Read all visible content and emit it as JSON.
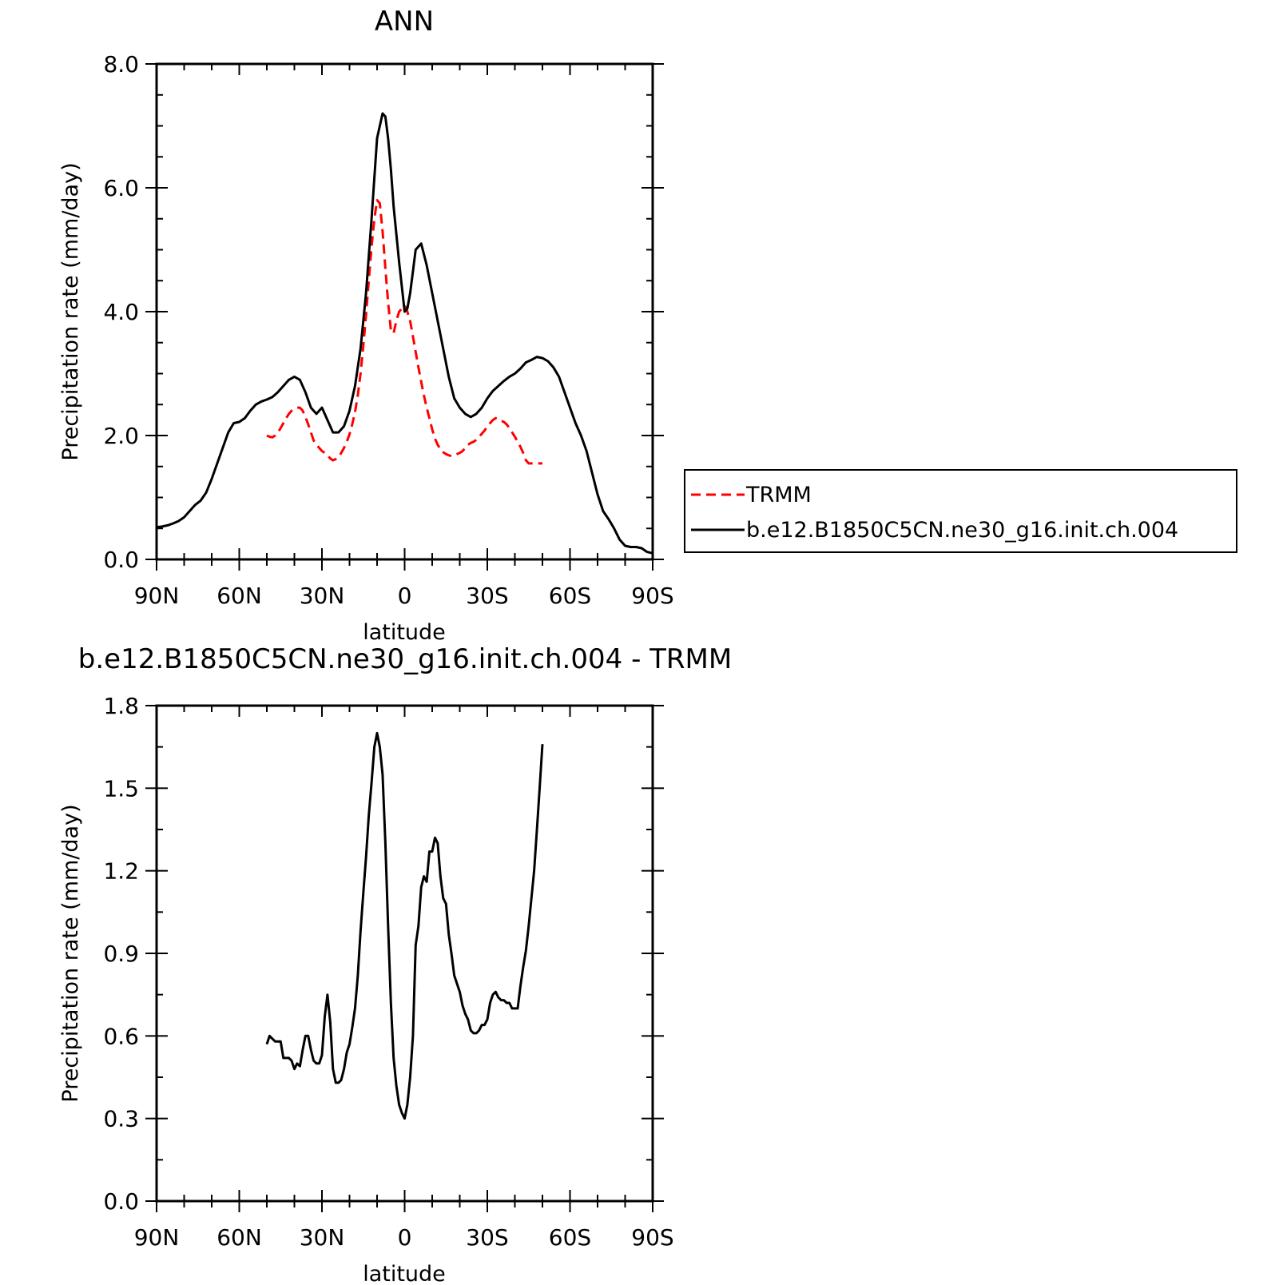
{
  "chart_data": [
    {
      "type": "line",
      "title": "ANN",
      "xlabel": "latitude",
      "ylabel": "Precipitation rate (mm/day)",
      "xlim": [
        90,
        -90
      ],
      "ylim": [
        0,
        8
      ],
      "xticks": [
        90,
        60,
        30,
        0,
        -30,
        -60,
        -90
      ],
      "xtick_labels": [
        "90N",
        "60N",
        "30N",
        "0",
        "30S",
        "60S",
        "90S"
      ],
      "yticks": [
        0,
        2,
        4,
        6,
        8
      ],
      "ytick_labels": [
        "0.0",
        "2.0",
        "4.0",
        "6.0",
        "8.0"
      ],
      "grid": false,
      "legend": "right",
      "series": [
        {
          "name": "TRMM",
          "color": "#ff0000",
          "dash": "dashed",
          "x": [
            50,
            49,
            48,
            47,
            46,
            45,
            44,
            43,
            42,
            41,
            40,
            39,
            38,
            37,
            36,
            35,
            34,
            33,
            32,
            31,
            30,
            29,
            28,
            27,
            26,
            25,
            24,
            23,
            22,
            21,
            20,
            19,
            18,
            17,
            16,
            15,
            14,
            13,
            12,
            11,
            10,
            9,
            8,
            7,
            6,
            5,
            4,
            3,
            2,
            1,
            0,
            -1,
            -2,
            -3,
            -4,
            -5,
            -6,
            -7,
            -8,
            -9,
            -10,
            -11,
            -12,
            -13,
            -14,
            -15,
            -16,
            -17,
            -18,
            -19,
            -20,
            -21,
            -22,
            -23,
            -24,
            -25,
            -26,
            -27,
            -28,
            -29,
            -30,
            -31,
            -32,
            -33,
            -34,
            -35,
            -36,
            -37,
            -38,
            -39,
            -40,
            -41,
            -42,
            -43,
            -44,
            -45,
            -46,
            -47,
            -48,
            -49,
            -50
          ],
          "y": [
            2.0,
            1.98,
            1.97,
            2.0,
            2.05,
            2.12,
            2.2,
            2.28,
            2.35,
            2.4,
            2.43,
            2.45,
            2.45,
            2.4,
            2.3,
            2.18,
            2.05,
            1.92,
            1.85,
            1.8,
            1.75,
            1.72,
            1.68,
            1.63,
            1.6,
            1.62,
            1.65,
            1.72,
            1.8,
            1.9,
            2.02,
            2.18,
            2.38,
            2.65,
            3.0,
            3.45,
            3.95,
            4.5,
            5.05,
            5.5,
            5.8,
            5.75,
            5.3,
            4.7,
            4.15,
            3.7,
            3.65,
            3.85,
            4.0,
            4.05,
            4.1,
            4.0,
            3.85,
            3.6,
            3.35,
            3.1,
            2.87,
            2.65,
            2.45,
            2.28,
            2.1,
            1.95,
            1.85,
            1.78,
            1.73,
            1.7,
            1.68,
            1.67,
            1.68,
            1.7,
            1.72,
            1.75,
            1.8,
            1.85,
            1.88,
            1.9,
            1.93,
            1.98,
            2.03,
            2.08,
            2.15,
            2.2,
            2.25,
            2.28,
            2.27,
            2.24,
            2.22,
            2.18,
            2.12,
            2.05,
            1.98,
            1.9,
            1.82,
            1.72,
            1.6,
            1.55,
            1.55,
            1.55,
            1.55,
            1.55,
            1.55
          ]
        },
        {
          "name": "b.e12.B1850C5CN.ne30_g16.init.ch.004",
          "color": "#000000",
          "dash": "solid",
          "x": [
            90,
            88,
            86,
            84,
            82,
            80,
            78,
            76,
            74,
            72,
            70,
            68,
            66,
            64,
            62,
            60,
            58,
            56,
            54,
            52,
            50,
            48,
            46,
            44,
            42,
            40,
            38,
            36,
            34,
            32,
            30,
            28,
            26,
            24,
            22,
            20,
            18,
            16,
            14,
            12,
            10,
            8,
            7,
            6,
            5,
            4,
            2,
            0,
            -1,
            -2,
            -3,
            -4,
            -6,
            -8,
            -10,
            -12,
            -14,
            -16,
            -18,
            -20,
            -22,
            -24,
            -26,
            -28,
            -30,
            -32,
            -34,
            -36,
            -38,
            -40,
            -42,
            -44,
            -46,
            -48,
            -50,
            -52,
            -54,
            -56,
            -58,
            -60,
            -62,
            -64,
            -66,
            -68,
            -70,
            -72,
            -74,
            -76,
            -78,
            -80,
            -82,
            -84,
            -86,
            -88,
            -90
          ],
          "y": [
            0.52,
            0.53,
            0.55,
            0.58,
            0.62,
            0.68,
            0.78,
            0.88,
            0.95,
            1.08,
            1.3,
            1.55,
            1.8,
            2.05,
            2.2,
            2.22,
            2.28,
            2.4,
            2.5,
            2.55,
            2.58,
            2.62,
            2.7,
            2.8,
            2.9,
            2.95,
            2.9,
            2.7,
            2.45,
            2.35,
            2.45,
            2.25,
            2.05,
            2.05,
            2.15,
            2.4,
            2.8,
            3.4,
            4.3,
            5.5,
            6.8,
            7.2,
            7.15,
            6.8,
            6.3,
            5.7,
            4.8,
            4.0,
            4.05,
            4.3,
            4.65,
            5.0,
            5.1,
            4.75,
            4.3,
            3.85,
            3.4,
            2.95,
            2.6,
            2.45,
            2.35,
            2.3,
            2.35,
            2.45,
            2.6,
            2.72,
            2.8,
            2.88,
            2.95,
            3.0,
            3.08,
            3.18,
            3.22,
            3.27,
            3.25,
            3.2,
            3.1,
            2.95,
            2.7,
            2.45,
            2.2,
            2.0,
            1.75,
            1.4,
            1.05,
            0.78,
            0.65,
            0.5,
            0.32,
            0.22,
            0.2,
            0.2,
            0.18,
            0.12,
            0.1
          ]
        }
      ]
    },
    {
      "type": "line",
      "title": "b.e12.B1850C5CN.ne30_g16.init.ch.004 - TRMM",
      "xlabel": "latitude",
      "ylabel": "Precipitation rate (mm/day)",
      "xlim": [
        90,
        -90
      ],
      "ylim": [
        0,
        1.8
      ],
      "xticks": [
        90,
        60,
        30,
        0,
        -30,
        -60,
        -90
      ],
      "xtick_labels": [
        "90N",
        "60N",
        "30N",
        "0",
        "30S",
        "60S",
        "90S"
      ],
      "yticks": [
        0,
        0.3,
        0.6,
        0.9,
        1.2,
        1.5,
        1.8
      ],
      "ytick_labels": [
        "0.0",
        "0.3",
        "0.6",
        "0.9",
        "1.2",
        "1.5",
        "1.8"
      ],
      "grid": false,
      "series": [
        {
          "color": "#000000",
          "dash": "solid",
          "x": [
            50,
            49,
            48,
            47,
            46,
            45,
            44,
            43,
            42,
            41,
            40,
            39,
            38,
            37,
            36,
            35,
            34,
            33,
            32,
            31,
            30,
            29,
            28,
            27,
            26,
            25,
            24,
            23,
            22,
            21,
            20,
            19,
            18,
            17,
            16,
            15,
            14,
            13,
            12,
            11,
            10,
            9,
            8,
            7,
            6,
            5,
            4,
            3,
            2,
            1,
            0,
            -1,
            -2,
            -3,
            -4,
            -5,
            -6,
            -7,
            -8,
            -9,
            -10,
            -11,
            -12,
            -13,
            -14,
            -15,
            -16,
            -17,
            -18,
            -19,
            -20,
            -21,
            -22,
            -23,
            -24,
            -25,
            -26,
            -27,
            -28,
            -29,
            -30,
            -31,
            -32,
            -33,
            -34,
            -35,
            -36,
            -37,
            -38,
            -39,
            -40,
            -41,
            -42,
            -43,
            -44,
            -45,
            -46,
            -47,
            -48,
            -49,
            -50
          ],
          "y": [
            0.57,
            0.6,
            0.59,
            0.58,
            0.58,
            0.58,
            0.52,
            0.52,
            0.52,
            0.51,
            0.48,
            0.5,
            0.49,
            0.55,
            0.6,
            0.6,
            0.55,
            0.51,
            0.5,
            0.5,
            0.53,
            0.67,
            0.75,
            0.65,
            0.48,
            0.43,
            0.43,
            0.44,
            0.48,
            0.54,
            0.57,
            0.63,
            0.7,
            0.82,
            0.98,
            1.12,
            1.25,
            1.4,
            1.52,
            1.65,
            1.7,
            1.65,
            1.55,
            1.3,
            1.0,
            0.72,
            0.52,
            0.42,
            0.35,
            0.32,
            0.3,
            0.35,
            0.45,
            0.6,
            0.93,
            1.0,
            1.14,
            1.18,
            1.16,
            1.27,
            1.27,
            1.32,
            1.3,
            1.18,
            1.1,
            1.08,
            0.97,
            0.9,
            0.82,
            0.79,
            0.76,
            0.71,
            0.68,
            0.66,
            0.62,
            0.61,
            0.61,
            0.62,
            0.64,
            0.64,
            0.66,
            0.72,
            0.75,
            0.76,
            0.74,
            0.73,
            0.73,
            0.72,
            0.72,
            0.7,
            0.7,
            0.7,
            0.78,
            0.85,
            0.91,
            1.0,
            1.1,
            1.2,
            1.35,
            1.5,
            1.66
          ]
        }
      ]
    }
  ]
}
